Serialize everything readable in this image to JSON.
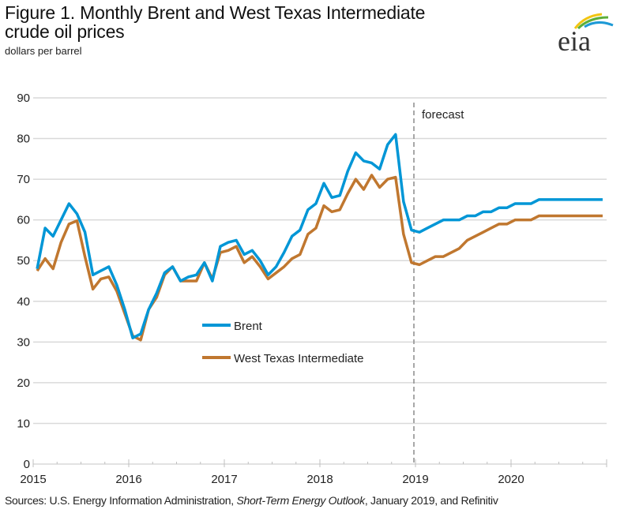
{
  "header": {
    "title_line1": "Figure 1. Monthly Brent and West Texas Intermediate",
    "title_line2": "crude oil prices",
    "subtitle": "dollars per barrel",
    "logo_text": "eia"
  },
  "source": {
    "prefix": "Sources: U.S. Energy Information Administration, ",
    "italic": "Short-Term Energy Outlook",
    "suffix": ", January 2019, and Refinitiv"
  },
  "colors": {
    "brent": "#0096D6",
    "wti": "#C0772F",
    "grid": "#D9D9D9",
    "forecast_line": "#8C8C8C"
  },
  "chart_data": {
    "type": "line",
    "title": "Figure 1. Monthly Brent and West Texas Intermediate crude oil prices",
    "ylabel": "dollars per barrel",
    "xlabel": "",
    "ylim": [
      0,
      90
    ],
    "yticks": [
      0,
      10,
      20,
      30,
      40,
      50,
      60,
      70,
      80,
      90
    ],
    "xticks": [
      "2015",
      "2016",
      "2017",
      "2018",
      "2019",
      "2020"
    ],
    "x_start": "2015-01",
    "x_end": "2020-12",
    "grid": true,
    "legend_position": "center-left",
    "annotation": {
      "text": "forecast",
      "at": "2019-01"
    },
    "series": [
      {
        "name": "Brent",
        "color": "#0096D6",
        "values": [
          48,
          58,
          56,
          60,
          64,
          61.5,
          57,
          46.5,
          47.5,
          48.5,
          44,
          38,
          31,
          32,
          38,
          42,
          47,
          48.5,
          45,
          46,
          46.5,
          49.5,
          45,
          53.5,
          54.5,
          55,
          51.5,
          52.5,
          50,
          46.5,
          48.5,
          52,
          56,
          57.5,
          62.5,
          64,
          69,
          65.5,
          66,
          72,
          76.5,
          74.5,
          74,
          72.5,
          78.5,
          81,
          64.5,
          57.5,
          57,
          58,
          59,
          60,
          60,
          60,
          61,
          61,
          62,
          62,
          63,
          63,
          64,
          64,
          64,
          65,
          65,
          65,
          65,
          65,
          65,
          65,
          65,
          65
        ]
      },
      {
        "name": "West Texas Intermediate",
        "color": "#C0772F",
        "values": [
          47.5,
          50.5,
          48,
          54.5,
          59,
          59.8,
          51,
          43,
          45.5,
          46,
          42.5,
          37,
          31.5,
          30.5,
          38,
          41,
          46.5,
          48.5,
          45,
          45,
          45,
          49.5,
          45.5,
          52,
          52.5,
          53.5,
          49.5,
          51,
          48.5,
          45.5,
          47,
          48.5,
          50.5,
          51.5,
          56.5,
          58,
          63.5,
          62,
          62.5,
          66.5,
          70,
          67.5,
          71,
          68,
          70,
          70.5,
          56.5,
          49.5,
          49,
          50,
          51,
          51,
          52,
          53,
          55,
          56,
          57,
          58,
          59,
          59,
          60,
          60,
          60,
          61,
          61,
          61,
          61,
          61,
          61,
          61,
          61,
          61
        ]
      }
    ]
  }
}
